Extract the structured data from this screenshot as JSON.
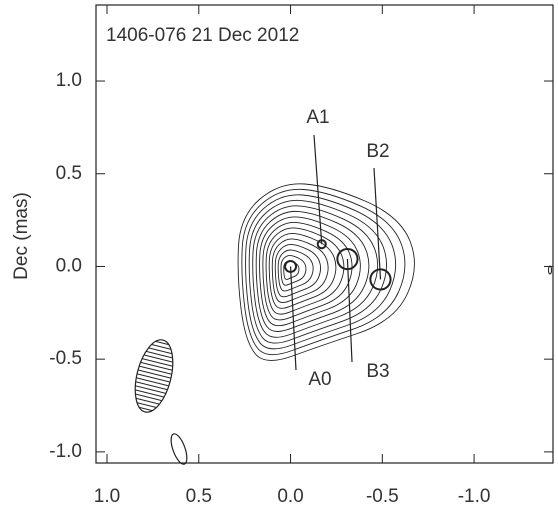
{
  "chart_data": {
    "type": "scatter",
    "title": "1406-076  21 Dec 2012",
    "y_label": "Dec (mas)",
    "xlim": [
      1.06,
      -1.43
    ],
    "ylim": [
      -1.06,
      1.41
    ],
    "xticks": [
      {
        "value": 1,
        "label": "1.0"
      },
      {
        "value": 0.5,
        "label": "0.5"
      },
      {
        "value": 0,
        "label": "0.0"
      },
      {
        "value": -0.5,
        "label": "-0.5"
      },
      {
        "value": -1,
        "label": "-1.0"
      }
    ],
    "yticks": [
      {
        "value": 1,
        "label": "1.0"
      },
      {
        "value": 0.5,
        "label": "0.5"
      },
      {
        "value": 0,
        "label": "0.0"
      },
      {
        "value": -0.5,
        "label": "-0.5"
      },
      {
        "value": -1,
        "label": "-1.0"
      }
    ],
    "components": [
      {
        "name": "A0",
        "x": 0,
        "y": 0,
        "size": 0.03
      },
      {
        "name": "A1",
        "x": -0.17,
        "y": 0.12,
        "size": 0.022
      },
      {
        "name": "B3",
        "x": -0.31,
        "y": 0.04,
        "size": 0.055
      },
      {
        "name": "B2",
        "x": -0.49,
        "y": -0.07,
        "size": 0.055
      }
    ]
  }
}
